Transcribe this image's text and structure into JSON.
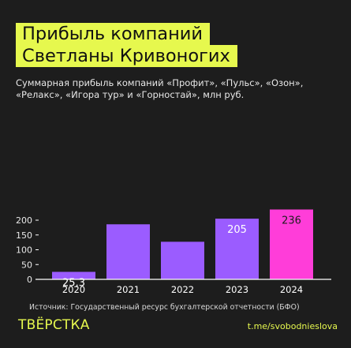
{
  "title": {
    "line1": "Прибыль компаний",
    "line2": "Светланы Кривоногих"
  },
  "subtitle": "Суммарная прибыль компаний «Профит», «Пульс», «Озон», «Релакс», «Игора тур» и «Горностай», млн руб.",
  "source": "Источник: Государственный ресурс бухгалтерской отчетности (БФО)",
  "logo": "ТВЁРСТКА",
  "channel": "t.me/svobodnieslova",
  "colors": {
    "background": "#1d1d1d",
    "bar": "#9b5cff",
    "highlight_bar": "#ff3dd9",
    "accent": "#e6f84e",
    "axis": "#ffffff"
  },
  "chart_data": {
    "type": "bar",
    "categories": [
      "2020",
      "2021",
      "2022",
      "2023",
      "2024"
    ],
    "values": [
      25.3,
      186,
      127,
      205,
      236
    ],
    "value_labels": [
      "25,3",
      "",
      "",
      "205",
      "236"
    ],
    "highlight_index": 4,
    "ylim": [
      0,
      250
    ],
    "yticks": [
      0,
      50,
      100,
      150,
      200
    ],
    "ytick_labels": [
      "0",
      "50",
      "100",
      "150",
      "200"
    ],
    "xlabel": "",
    "ylabel": "",
    "grid": false
  }
}
